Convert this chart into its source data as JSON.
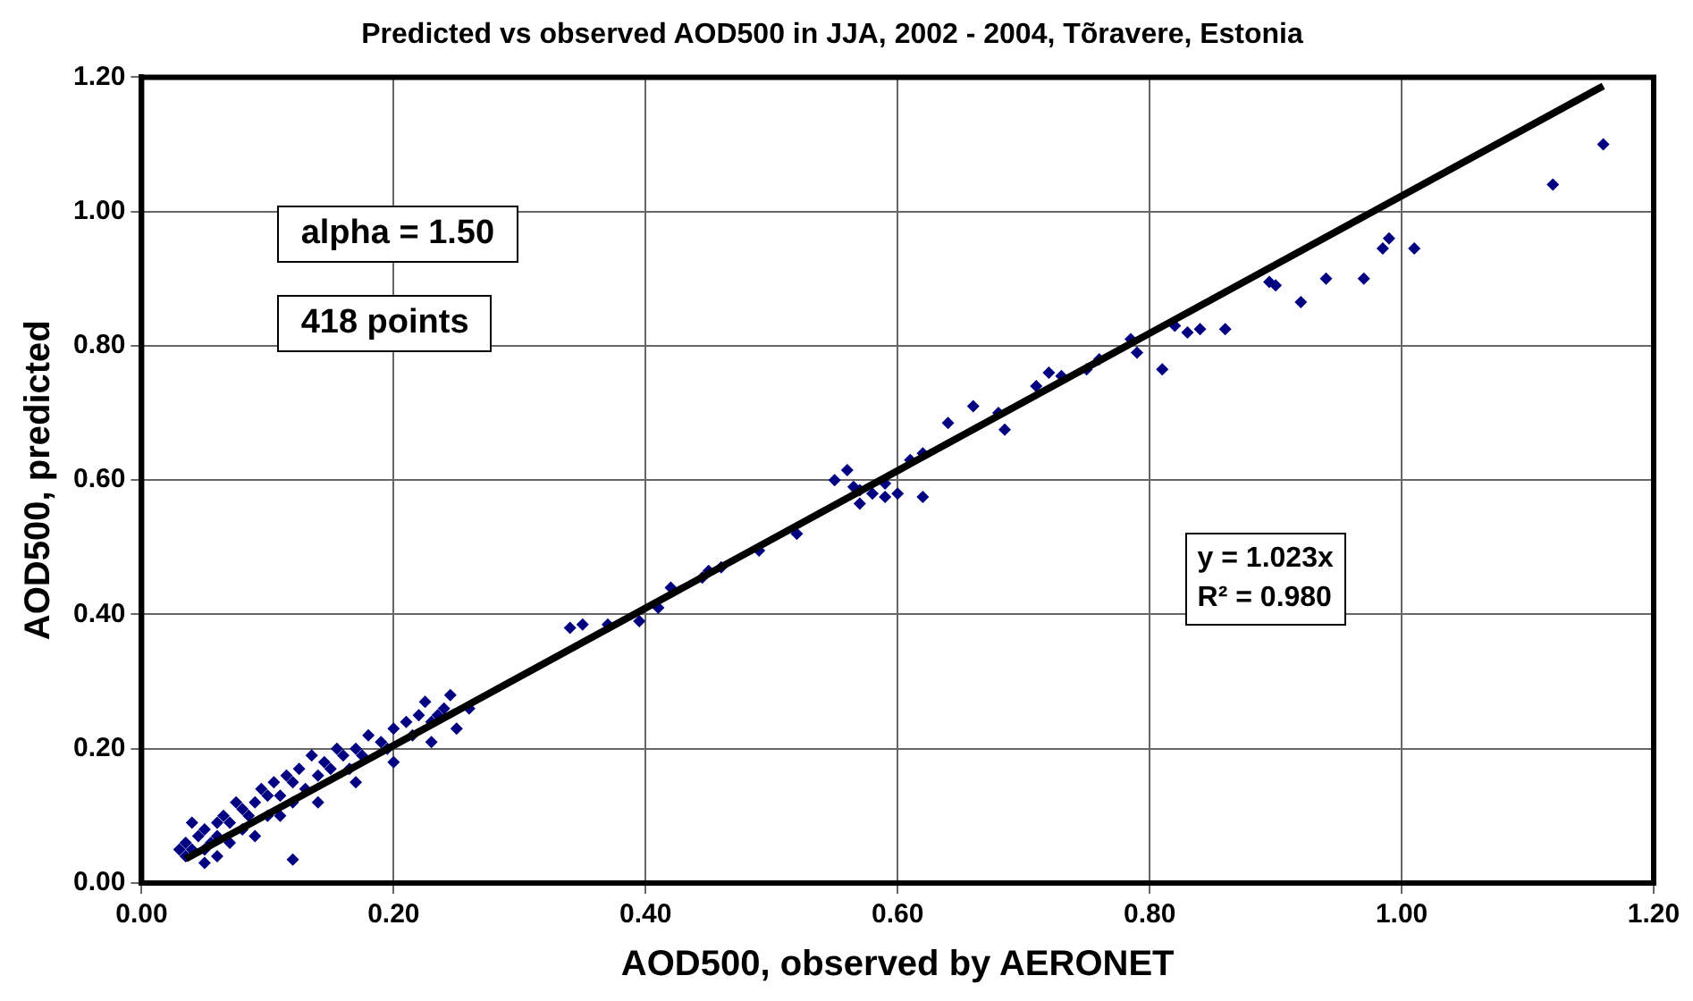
{
  "chart_data": {
    "type": "scatter",
    "title": "Predicted vs observed AOD500 in JJA, 2002 - 2004, Tõravere, Estonia",
    "xlabel": "AOD500, observed by AERONET",
    "ylabel": "AOD500, predicted",
    "xlim": [
      0,
      1.2
    ],
    "xticks": [
      {
        "value": 0,
        "label": "0.00"
      },
      {
        "value": 0.2,
        "label": "0.20"
      },
      {
        "value": 0.4,
        "label": "0.40"
      },
      {
        "value": 0.6,
        "label": "0.60"
      },
      {
        "value": 0.8,
        "label": "0.80"
      },
      {
        "value": 1,
        "label": "1.00"
      },
      {
        "value": 1.2,
        "label": "1.20"
      }
    ],
    "ylim": [
      0,
      1.2
    ],
    "yticks": [
      {
        "value": 0,
        "label": "0.00"
      },
      {
        "value": 0.2,
        "label": "0.20"
      },
      {
        "value": 0.4,
        "label": "0.40"
      },
      {
        "value": 0.6,
        "label": "0.60"
      },
      {
        "value": 0.8,
        "label": "0.80"
      },
      {
        "value": 1,
        "label": "1.00"
      },
      {
        "value": 1.2,
        "label": "1.20"
      }
    ],
    "grid": true,
    "legend": false,
    "marker": "diamond",
    "annotations": [
      "alpha = 1.50",
      "418 points",
      "y = 1.023x",
      "R² = 0.980"
    ],
    "series": [
      {
        "type": "scatter",
        "color": "#000080",
        "x": [
          1.16,
          1.12,
          1.01,
          0.99,
          0.985,
          0.97,
          0.94,
          0.92,
          0.9,
          0.895,
          0.86,
          0.84,
          0.83,
          0.82,
          0.81,
          0.79,
          0.785,
          0.76,
          0.75,
          0.72,
          0.73,
          0.71,
          0.68,
          0.685,
          0.66,
          0.64,
          0.62,
          0.61,
          0.6,
          0.59,
          0.58,
          0.57,
          0.565,
          0.56,
          0.55,
          0.57,
          0.62,
          0.59,
          0.52,
          0.49,
          0.46,
          0.45,
          0.445,
          0.42,
          0.41,
          0.395,
          0.37,
          0.35,
          0.34,
          0.26,
          0.25,
          0.245,
          0.24,
          0.235,
          0.23,
          0.225,
          0.22,
          0.215,
          0.21,
          0.2,
          0.195,
          0.19,
          0.18,
          0.175,
          0.17,
          0.165,
          0.16,
          0.155,
          0.15,
          0.145,
          0.14,
          0.135,
          0.13,
          0.125,
          0.12,
          0.12,
          0.115,
          0.11,
          0.105,
          0.1,
          0.1,
          0.095,
          0.09,
          0.085,
          0.08,
          0.08,
          0.075,
          0.07,
          0.065,
          0.06,
          0.06,
          0.055,
          0.05,
          0.05,
          0.045,
          0.04,
          0.04,
          0.035,
          0.035,
          0.03,
          0.2,
          0.17,
          0.14,
          0.11,
          0.09,
          0.07,
          0.06,
          0.05,
          0.12,
          0.23
        ],
        "values": [
          1.1,
          1.04,
          0.945,
          0.96,
          0.945,
          0.9,
          0.9,
          0.865,
          0.89,
          0.895,
          0.825,
          0.825,
          0.82,
          0.83,
          0.765,
          0.79,
          0.81,
          0.78,
          0.765,
          0.76,
          0.755,
          0.74,
          0.7,
          0.675,
          0.71,
          0.685,
          0.64,
          0.63,
          0.58,
          0.595,
          0.58,
          0.585,
          0.59,
          0.615,
          0.6,
          0.565,
          0.575,
          0.575,
          0.52,
          0.495,
          0.47,
          0.465,
          0.455,
          0.44,
          0.41,
          0.39,
          0.385,
          0.385,
          0.38,
          0.26,
          0.23,
          0.28,
          0.26,
          0.25,
          0.24,
          0.27,
          0.25,
          0.22,
          0.24,
          0.23,
          0.2,
          0.21,
          0.22,
          0.19,
          0.2,
          0.17,
          0.19,
          0.2,
          0.17,
          0.18,
          0.16,
          0.19,
          0.14,
          0.17,
          0.15,
          0.12,
          0.16,
          0.13,
          0.15,
          0.13,
          0.1,
          0.14,
          0.12,
          0.1,
          0.11,
          0.08,
          0.12,
          0.09,
          0.1,
          0.07,
          0.09,
          0.06,
          0.08,
          0.05,
          0.07,
          0.05,
          0.09,
          0.04,
          0.06,
          0.05,
          0.18,
          0.15,
          0.12,
          0.1,
          0.07,
          0.06,
          0.04,
          0.03,
          0.035,
          0.21
        ]
      },
      {
        "type": "line",
        "marker": "none",
        "color": "#000000",
        "x": [
          0.035,
          1.16
        ],
        "values": [
          0.036,
          1.187
        ]
      }
    ]
  }
}
